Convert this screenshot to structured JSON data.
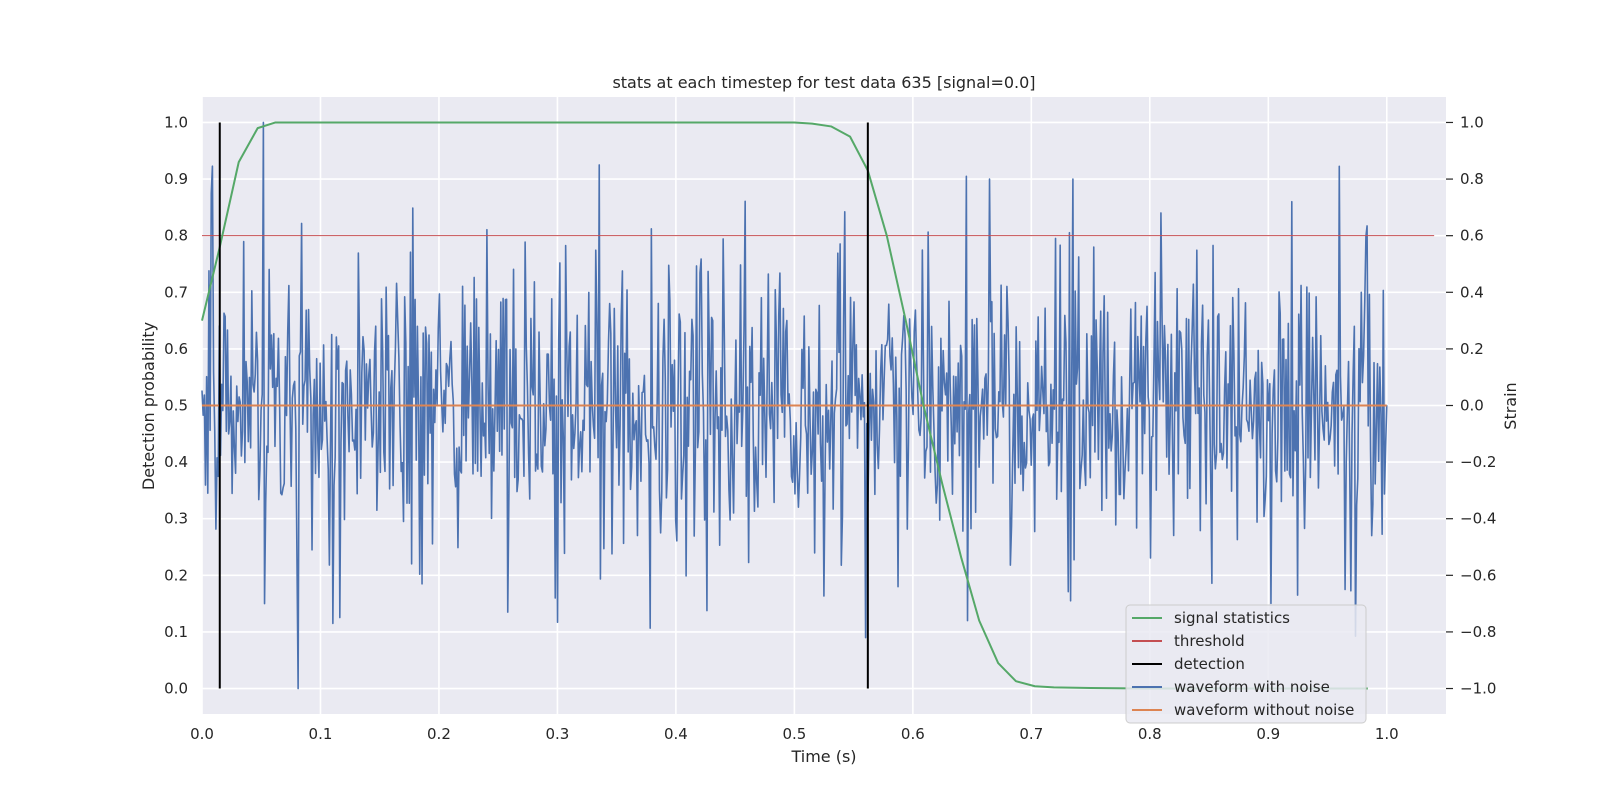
{
  "chart_data": {
    "type": "line",
    "title": "stats at each timestep for test data 635 [signal=0.0]",
    "xlabel": "Time (s)",
    "ylabel": "Detection probability",
    "y2label": "Strain",
    "xlim": [
      0.0,
      1.05
    ],
    "ylim": [
      -0.045,
      1.045
    ],
    "y2lim": [
      -1.09,
      1.09
    ],
    "xticks": [
      "0.0",
      "0.1",
      "0.2",
      "0.3",
      "0.4",
      "0.5",
      "0.6",
      "0.7",
      "0.8",
      "0.9",
      "1.0"
    ],
    "yticks": [
      "0.0",
      "0.1",
      "0.2",
      "0.3",
      "0.4",
      "0.5",
      "0.6",
      "0.7",
      "0.8",
      "0.9",
      "1.0"
    ],
    "y2ticks": [
      "−1.0",
      "−0.8",
      "−0.6",
      "−0.4",
      "−0.2",
      "0.0",
      "0.2",
      "0.4",
      "0.6",
      "0.8",
      "1.0"
    ],
    "grid": true,
    "legend_position": "bottom-right",
    "colors": {
      "plot_bg": "#eaeaf2",
      "grid": "#ffffff",
      "signal_statistics": "#55a868",
      "threshold": "#c44e52",
      "detection": "#000000",
      "waveform_with_noise": "#4c72b0",
      "waveform_without_noise": "#dd8452"
    },
    "series": [
      {
        "name": "signal statistics",
        "axis": "left",
        "x": [
          0.0,
          0.015,
          0.031,
          0.047,
          0.062,
          0.078,
          0.1,
          0.2,
          0.3,
          0.4,
          0.5,
          0.515,
          0.531,
          0.547,
          0.562,
          0.578,
          0.594,
          0.609,
          0.625,
          0.641,
          0.656,
          0.672,
          0.687,
          0.703,
          0.719,
          0.75,
          0.8,
          0.9,
          0.984
        ],
        "values": [
          0.65,
          0.78,
          0.93,
          0.99,
          1.0,
          1.0,
          1.0,
          1.0,
          1.0,
          1.0,
          1.0,
          0.998,
          0.993,
          0.975,
          0.915,
          0.8,
          0.65,
          0.5,
          0.36,
          0.23,
          0.12,
          0.045,
          0.013,
          0.004,
          0.002,
          0.001,
          0.0,
          0.0,
          0.0
        ]
      },
      {
        "name": "threshold",
        "axis": "left",
        "x": [
          0.0,
          1.04
        ],
        "values": [
          0.8,
          0.8
        ]
      },
      {
        "name": "detection",
        "axis": "left",
        "type": "vlines",
        "x": [
          0.015,
          0.562
        ],
        "y_range": [
          0.0,
          1.0
        ]
      },
      {
        "name": "waveform with noise",
        "axis": "right",
        "x_range": [
          0.0,
          1.0
        ],
        "n_points": 1024,
        "std": 0.25,
        "peak_values": [
          {
            "x": 0.052,
            "value": 1.0
          },
          {
            "x": 0.081,
            "value": -1.0
          },
          {
            "x": 0.008,
            "value": 0.75
          },
          {
            "x": 0.11,
            "value": -0.77
          },
          {
            "x": 0.335,
            "value": 0.85
          },
          {
            "x": 0.298,
            "value": -0.68
          },
          {
            "x": 0.258,
            "value": -0.73
          },
          {
            "x": 0.645,
            "value": 0.81
          },
          {
            "x": 0.665,
            "value": 0.8
          },
          {
            "x": 0.735,
            "value": 0.8
          },
          {
            "x": 0.733,
            "value": -0.69
          },
          {
            "x": 0.92,
            "value": 0.72
          },
          {
            "x": 0.925,
            "value": -0.67
          },
          {
            "x": 0.965,
            "value": -0.65
          },
          {
            "x": 0.587,
            "value": -0.64
          },
          {
            "x": 0.053,
            "value": -0.7
          },
          {
            "x": 0.56,
            "value": -0.82
          }
        ]
      },
      {
        "name": "waveform without noise",
        "axis": "right",
        "x": [
          0.0,
          1.0
        ],
        "values": [
          0.0,
          0.0
        ]
      }
    ],
    "legend": [
      "signal statistics",
      "threshold",
      "detection",
      "waveform with noise",
      "waveform without noise"
    ]
  }
}
